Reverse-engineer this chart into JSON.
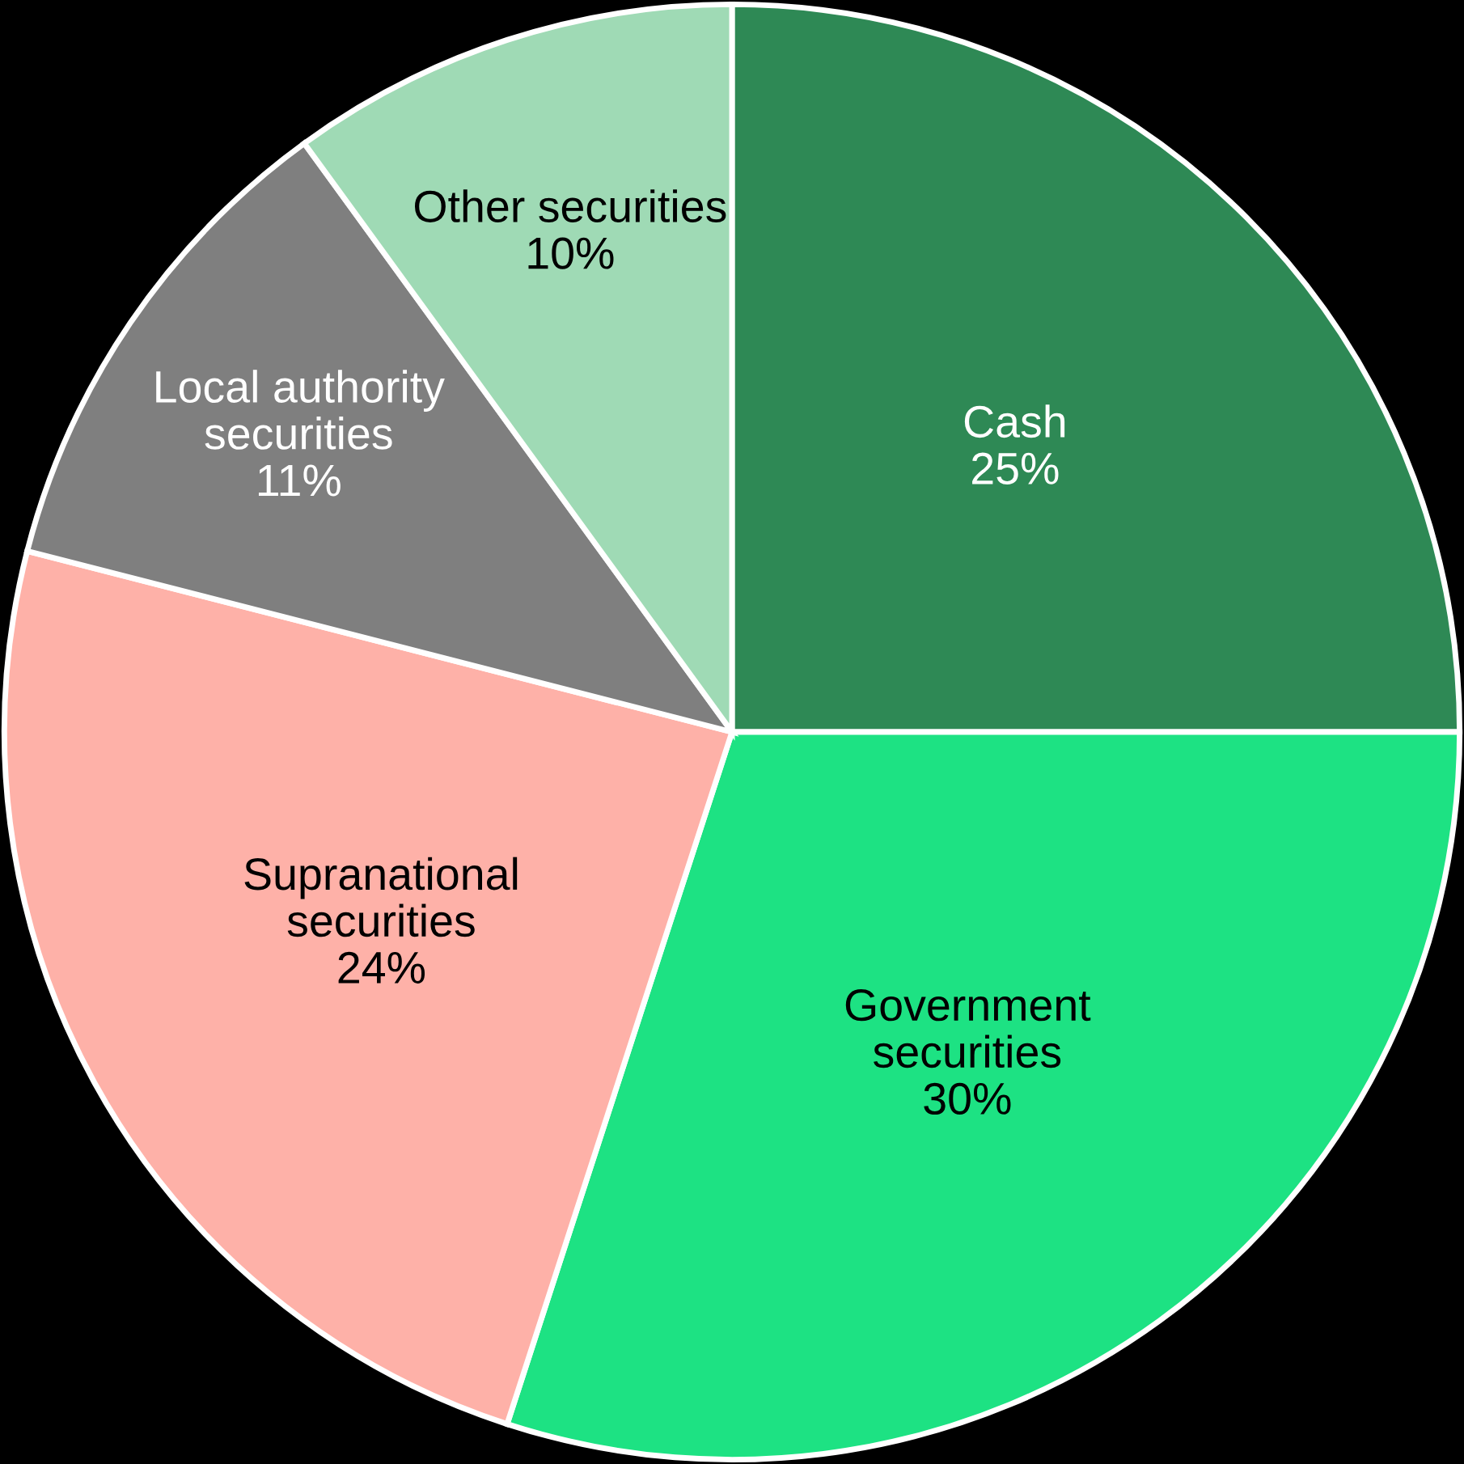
{
  "chart_data": {
    "type": "pie",
    "categories": [
      "Cash",
      "Government\nsecurities",
      "Supranational\nsecurities",
      "Local authority\nsecurities",
      "Other securities"
    ],
    "values": [
      25,
      30,
      24,
      11,
      10
    ],
    "value_labels": [
      "25%",
      "30%",
      "24%",
      "11%",
      "10%"
    ],
    "colors": [
      "#2e8955",
      "#1de283",
      "#feb1a8",
      "#7f7f7f",
      "#9fdab5"
    ],
    "legend": false
  }
}
